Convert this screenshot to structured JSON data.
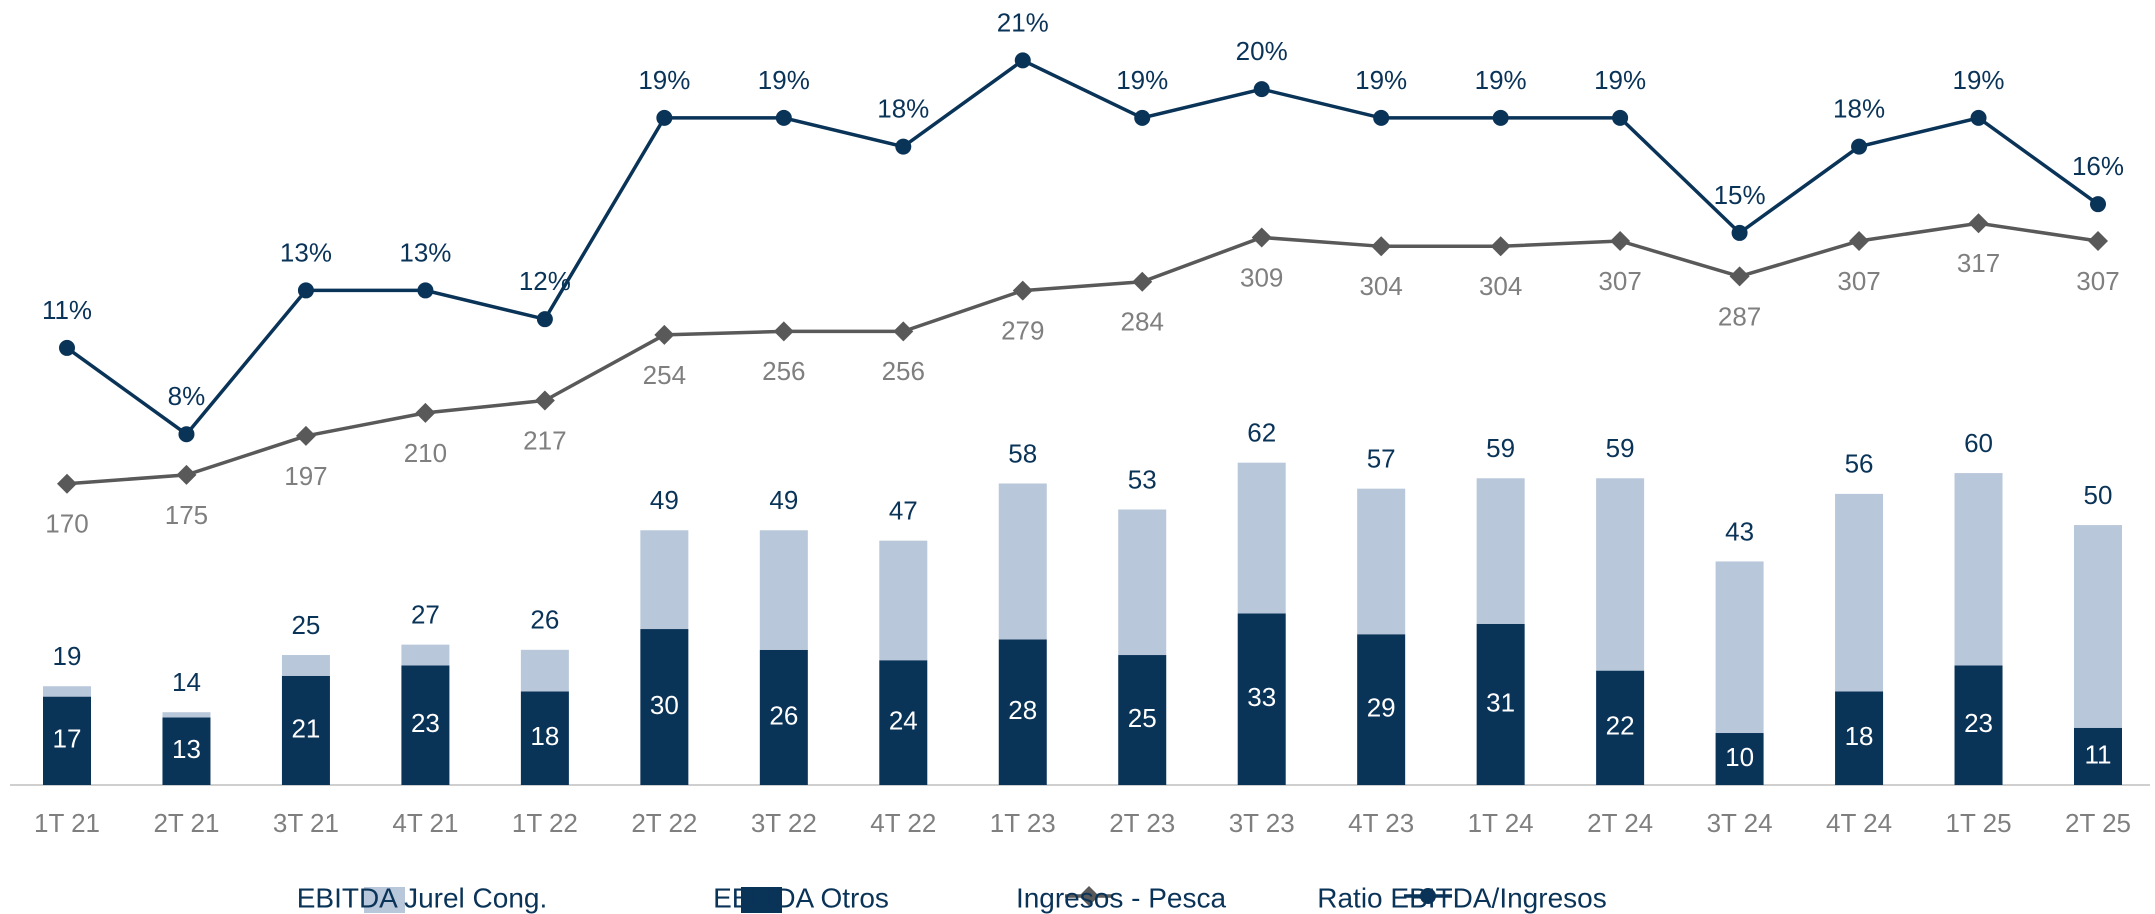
{
  "chart_data": {
    "type": "bar_line",
    "categories": [
      "1T 21",
      "2T 21",
      "3T 21",
      "4T 21",
      "1T 22",
      "2T 22",
      "3T 22",
      "4T 22",
      "1T 23",
      "2T 23",
      "3T 23",
      "4T 23",
      "1T 24",
      "2T 24",
      "3T 24",
      "4T 24",
      "1T 25",
      "2T 25"
    ],
    "series": [
      {
        "name": "EBITDA Jurel Cong.",
        "color": "#b8c7da",
        "kind": "bar",
        "values": [
          2,
          1,
          4,
          4,
          8,
          19,
          23,
          23,
          30,
          28,
          29,
          28,
          28,
          37,
          33,
          38,
          37,
          39
        ]
      },
      {
        "name": "EBITDA Otros",
        "color": "#0a3358",
        "kind": "bar",
        "values": [
          17,
          13,
          21,
          23,
          18,
          30,
          26,
          24,
          28,
          25,
          33,
          29,
          31,
          22,
          10,
          18,
          23,
          11
        ]
      },
      {
        "name": "Ingresos - Pesca",
        "color": "#595959",
        "kind": "line",
        "axis": "y2",
        "marker": "diamond",
        "values": [
          170,
          175,
          197,
          210,
          217,
          254,
          256,
          256,
          279,
          284,
          309,
          304,
          304,
          307,
          287,
          307,
          317,
          307
        ]
      },
      {
        "name": "Ratio EBITDA/Ingresos",
        "color": "#0a3358",
        "kind": "line",
        "axis": "y3",
        "marker": "circle",
        "values": [
          11,
          8,
          13,
          13,
          12,
          19,
          19,
          18,
          21,
          19,
          20,
          19,
          19,
          19,
          15,
          18,
          19,
          16
        ],
        "value_labels": [
          "11%",
          "8%",
          "13%",
          "13%",
          "12%",
          "19%",
          "19%",
          "18%",
          "21%",
          "19%",
          "20%",
          "19%",
          "19%",
          "19%",
          "15%",
          "18%",
          "19%",
          "16%"
        ]
      }
    ],
    "totals": [
      19,
      14,
      25,
      27,
      26,
      49,
      49,
      47,
      58,
      53,
      62,
      57,
      59,
      59,
      43,
      56,
      60,
      50
    ],
    "ylim": [
      0,
      151
    ],
    "y2lim": [
      0,
      443
    ],
    "y3lim": [
      -4.2,
      23.1
    ]
  }
}
